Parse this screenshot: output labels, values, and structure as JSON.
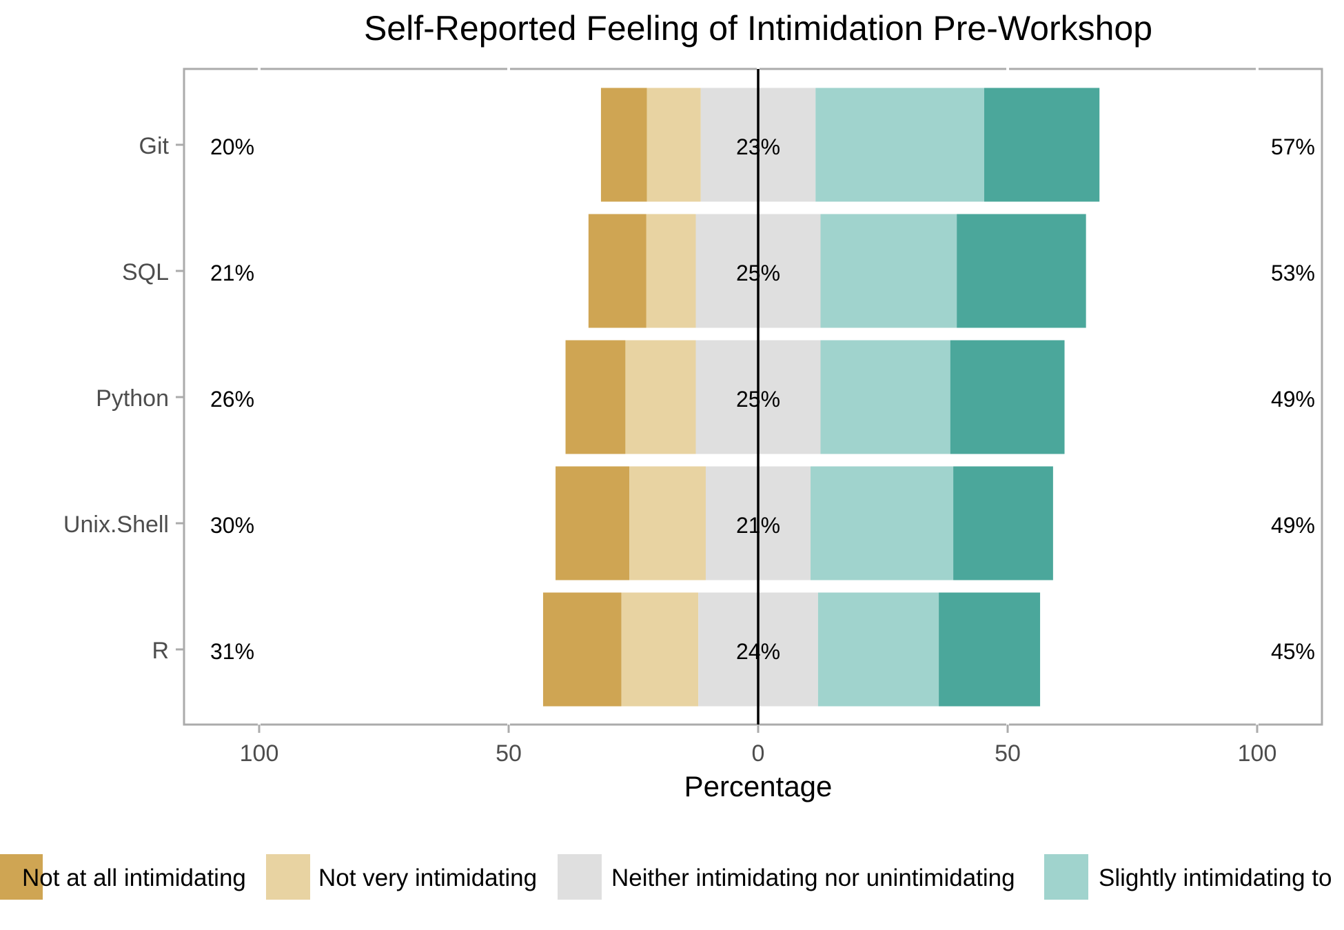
{
  "chart_data": {
    "type": "bar",
    "title": "Self-Reported Feeling of Intimidation Pre-Workshop",
    "xlabel": "Percentage",
    "ylabel": "",
    "xlim": [
      -115,
      115
    ],
    "x_ticks": [
      -100,
      -50,
      0,
      50,
      100
    ],
    "x_tick_labels": [
      "100",
      "50",
      "0",
      "50",
      "100"
    ],
    "categories": [
      "Git",
      "SQL",
      "Python",
      "Unix.Shell",
      "R"
    ],
    "series": [
      {
        "name": "Not at all intimidating",
        "color": "#CFA553",
        "values": [
          9.2,
          11.6,
          12.0,
          14.8,
          15.7
        ]
      },
      {
        "name": "Not very intimidating",
        "color": "#E8D3A2",
        "values": [
          10.8,
          9.9,
          14.1,
          15.3,
          15.4
        ]
      },
      {
        "name": "Neither intimidating nor unintimidating",
        "color": "#DFDFDF",
        "values": [
          23,
          25,
          25,
          21,
          24
        ]
      },
      {
        "name": "Slightly intimidating to",
        "color": "#A0D3CD",
        "values": [
          33.8,
          27.3,
          26.0,
          28.6,
          24.2
        ]
      },
      {
        "name": "",
        "color": "#4BA79B",
        "values": [
          23.1,
          25.9,
          22.9,
          20.0,
          20.3
        ]
      }
    ],
    "left_labels": [
      "20%",
      "21%",
      "26%",
      "30%",
      "31%"
    ],
    "center_labels": [
      "23%",
      "25%",
      "25%",
      "21%",
      "24%"
    ],
    "right_labels": [
      "57%",
      "53%",
      "49%",
      "49%",
      "45%"
    ],
    "legend_position": "bottom",
    "grid": true
  }
}
